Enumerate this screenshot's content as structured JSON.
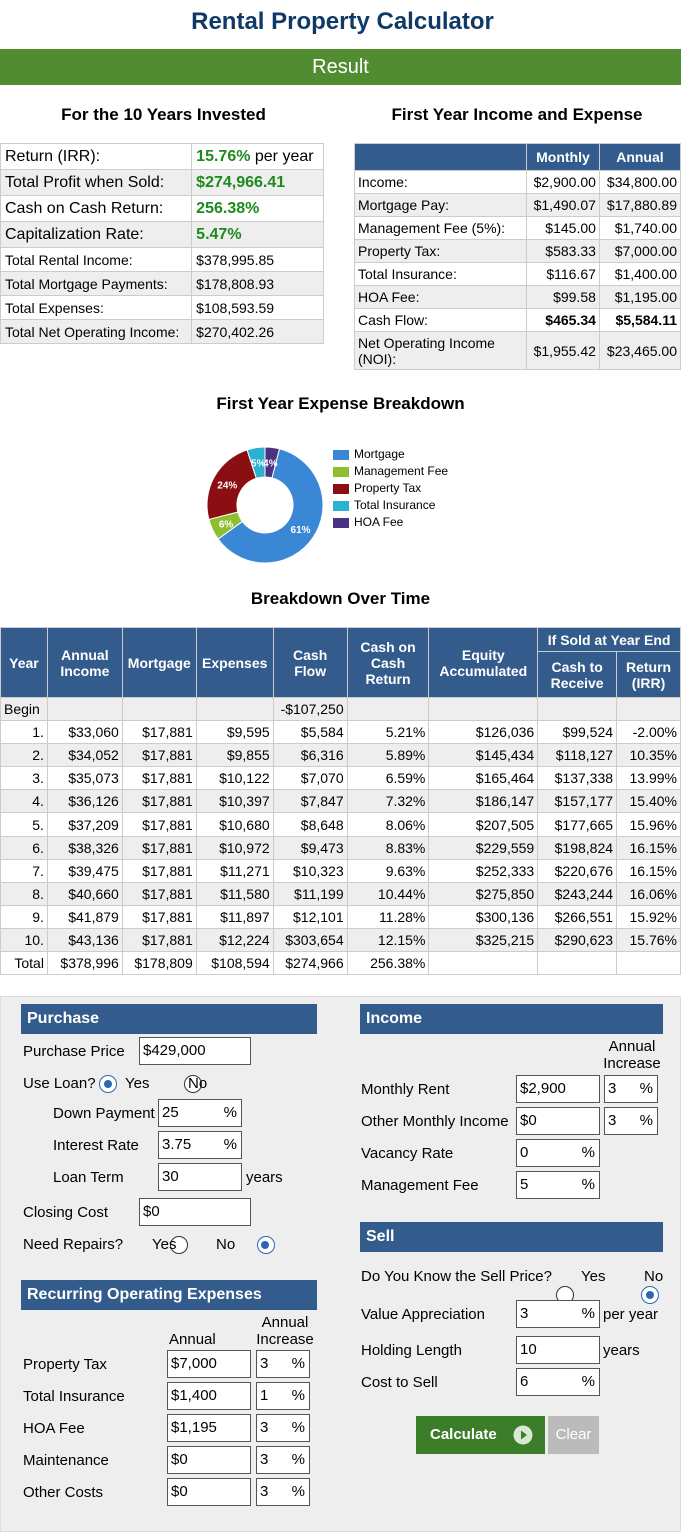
{
  "page_title": "Rental Property Calculator",
  "result_label": "Result",
  "summary": {
    "heading": "For the 10 Years Invested",
    "rows": [
      {
        "label": "Return (IRR):",
        "value": "15.76%",
        "suffix": " per year"
      },
      {
        "label": "Total Profit when Sold:",
        "value": "$274,966.41"
      },
      {
        "label": "Cash on Cash Return:",
        "value": "256.38%"
      },
      {
        "label": "Capitalization Rate:",
        "value": "5.47%"
      },
      {
        "label": "Total Rental Income:",
        "value": "$378,995.85"
      },
      {
        "label": "Total Mortgage Payments:",
        "value": "$178,808.93"
      },
      {
        "label": "Total Expenses:",
        "value": "$108,593.59"
      },
      {
        "label": "Total Net Operating Income:",
        "value": "$270,402.26"
      }
    ]
  },
  "first_year": {
    "heading": "First Year Income and Expense",
    "col_monthly": "Monthly",
    "col_annual": "Annual",
    "rows": [
      {
        "label": "Income:",
        "monthly": "$2,900.00",
        "annual": "$34,800.00"
      },
      {
        "label": "Mortgage Pay:",
        "monthly": "$1,490.07",
        "annual": "$17,880.89"
      },
      {
        "label": "Management Fee (5%):",
        "monthly": "$145.00",
        "annual": "$1,740.00"
      },
      {
        "label": "Property Tax:",
        "monthly": "$583.33",
        "annual": "$7,000.00"
      },
      {
        "label": "Total Insurance:",
        "monthly": "$116.67",
        "annual": "$1,400.00"
      },
      {
        "label": "HOA Fee:",
        "monthly": "$99.58",
        "annual": "$1,195.00"
      },
      {
        "label": "Cash Flow:",
        "monthly": "$465.34",
        "annual": "$5,584.11"
      },
      {
        "label": "Net Operating Income (NOI):",
        "monthly": "$1,955.42",
        "annual": "$23,465.00"
      }
    ]
  },
  "expense_chart": {
    "heading": "First Year Expense Breakdown",
    "slices": [
      {
        "name": "Mortgage",
        "percent": 61,
        "label": "61%",
        "color": "#3a87d6"
      },
      {
        "name": "Management Fee",
        "percent": 6,
        "label": "6%",
        "color": "#8fbf30"
      },
      {
        "name": "Property Tax",
        "percent": 24,
        "label": "24%",
        "color": "#8b0f12"
      },
      {
        "name": "Total Insurance",
        "percent": 5,
        "label": "5%",
        "color": "#29b2d1"
      },
      {
        "name": "HOA Fee",
        "percent": 4,
        "label": "4%",
        "color": "#4a3380"
      }
    ]
  },
  "breakdown": {
    "heading": "Breakdown Over Time",
    "headers": {
      "year": "Year",
      "income": "Annual Income",
      "mortgage": "Mortgage",
      "expenses": "Expenses",
      "cashflow": "Cash Flow",
      "coc": "Cash on Cash Return",
      "equity": "Equity Accumulated",
      "sold": "If Sold at Year End",
      "receive": "Cash to Receive",
      "irr": "Return (IRR)"
    },
    "rows": [
      [
        "Begin",
        "",
        "",
        "",
        "-$107,250",
        "",
        "",
        "",
        ""
      ],
      [
        "1.",
        "$33,060",
        "$17,881",
        "$9,595",
        "$5,584",
        "5.21%",
        "$126,036",
        "$99,524",
        "-2.00%"
      ],
      [
        "2.",
        "$34,052",
        "$17,881",
        "$9,855",
        "$6,316",
        "5.89%",
        "$145,434",
        "$118,127",
        "10.35%"
      ],
      [
        "3.",
        "$35,073",
        "$17,881",
        "$10,122",
        "$7,070",
        "6.59%",
        "$165,464",
        "$137,338",
        "13.99%"
      ],
      [
        "4.",
        "$36,126",
        "$17,881",
        "$10,397",
        "$7,847",
        "7.32%",
        "$186,147",
        "$157,177",
        "15.40%"
      ],
      [
        "5.",
        "$37,209",
        "$17,881",
        "$10,680",
        "$8,648",
        "8.06%",
        "$207,505",
        "$177,665",
        "15.96%"
      ],
      [
        "6.",
        "$38,326",
        "$17,881",
        "$10,972",
        "$9,473",
        "8.83%",
        "$229,559",
        "$198,824",
        "16.15%"
      ],
      [
        "7.",
        "$39,475",
        "$17,881",
        "$11,271",
        "$10,323",
        "9.63%",
        "$252,333",
        "$220,676",
        "16.15%"
      ],
      [
        "8.",
        "$40,660",
        "$17,881",
        "$11,580",
        "$11,199",
        "10.44%",
        "$275,850",
        "$243,244",
        "16.06%"
      ],
      [
        "9.",
        "$41,879",
        "$17,881",
        "$11,897",
        "$12,101",
        "11.28%",
        "$300,136",
        "$266,551",
        "15.92%"
      ],
      [
        "10.",
        "$43,136",
        "$17,881",
        "$12,224",
        "$303,654",
        "12.15%",
        "$325,215",
        "$290,623",
        "15.76%"
      ],
      [
        "Total",
        "$378,996",
        "$178,809",
        "$108,594",
        "$274,966",
        "256.38%",
        "",
        "",
        ""
      ]
    ]
  },
  "purchase": {
    "title": "Purchase",
    "price_label": "Purchase Price",
    "price": "$429,000",
    "use_loan_label": "Use Loan?",
    "yes": "Yes",
    "no": "No",
    "down_label": "Down Payment",
    "down": "25",
    "rate_label": "Interest Rate",
    "rate": "3.75",
    "term_label": "Loan Term",
    "term": "30",
    "years": "years",
    "closing_label": "Closing Cost",
    "closing": "$0",
    "repairs_label": "Need Repairs?",
    "pct": "%"
  },
  "recurring": {
    "title": "Recurring Operating Expenses",
    "col_annual": "Annual",
    "col_increase": "Annual Increase",
    "rows": [
      {
        "label": "Property Tax",
        "value": "$7,000",
        "increase": "3"
      },
      {
        "label": "Total Insurance",
        "value": "$1,400",
        "increase": "1"
      },
      {
        "label": "HOA Fee",
        "value": "$1,195",
        "increase": "3"
      },
      {
        "label": "Maintenance",
        "value": "$0",
        "increase": "3"
      },
      {
        "label": "Other Costs",
        "value": "$0",
        "increase": "3"
      }
    ]
  },
  "income": {
    "title": "Income",
    "col_increase": "Annual Increase",
    "rent_label": "Monthly Rent",
    "rent": "$2,900",
    "rent_inc": "3",
    "other_label": "Other Monthly Income",
    "other": "$0",
    "other_inc": "3",
    "vacancy_label": "Vacancy Rate",
    "vacancy": "0",
    "mgmt_label": "Management Fee",
    "mgmt": "5"
  },
  "sell": {
    "title": "Sell",
    "know_label": "Do You Know the Sell Price?",
    "yes": "Yes",
    "no": "No",
    "appr_label": "Value Appreciation",
    "appr": "3",
    "per_year": "per year",
    "hold_label": "Holding Length",
    "hold": "10",
    "years": "years",
    "cost_label": "Cost to Sell",
    "cost": "6"
  },
  "buttons": {
    "calculate": "Calculate",
    "clear": "Clear"
  }
}
